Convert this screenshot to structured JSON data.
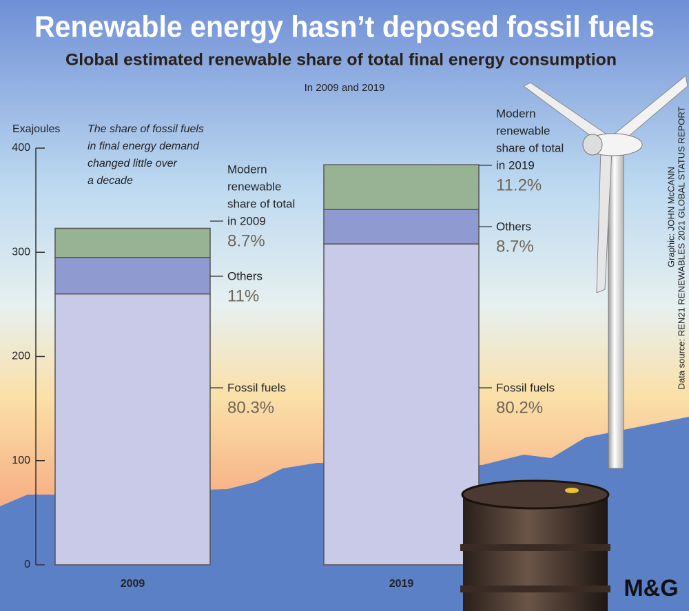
{
  "chart_data": {
    "type": "stacked_bar",
    "title": "Renewable energy hasn’t deposed fossil fuels",
    "subtitle": "Global estimated renewable share of total final energy consumption",
    "note": "In 2009 and 2019",
    "y_label": "Exajoules",
    "annotation": [
      "The share of fossil fuels",
      "in final energy demand",
      "changed little over",
      "a decade"
    ],
    "categories": [
      "2009",
      "2019"
    ],
    "series": [
      {
        "labels": [
          [
            "Fossil fuels"
          ],
          [
            "Fossil fuels"
          ]
        ],
        "share_labels": [
          "80.3%",
          "80.2%"
        ],
        "color": "#c9c9e8",
        "values": [
          260,
          308
        ]
      },
      {
        "labels": [
          [
            "Others"
          ],
          [
            "Others"
          ]
        ],
        "share_labels": [
          "11%",
          "8.7%"
        ],
        "color": "#8f9bd0",
        "values": [
          35,
          33
        ]
      },
      {
        "labels": [
          [
            "Modern",
            "renewable",
            "share of total",
            "in 2009"
          ],
          [
            "Modern",
            "renewable",
            "share of total",
            "in 2019"
          ]
        ],
        "share_labels": [
          "8.7%",
          "11.2%"
        ],
        "color": "#97b393",
        "values": [
          28,
          43
        ]
      }
    ],
    "ylim": [
      0,
      400
    ],
    "yticks": [
      0,
      100,
      200,
      300,
      400
    ],
    "credits": [
      "Graphic: JOHN McCANN",
      "Data source: REN21 RENEWABLES 2021 GLOBAL STATUS REPORT"
    ],
    "logo": "M&G"
  }
}
